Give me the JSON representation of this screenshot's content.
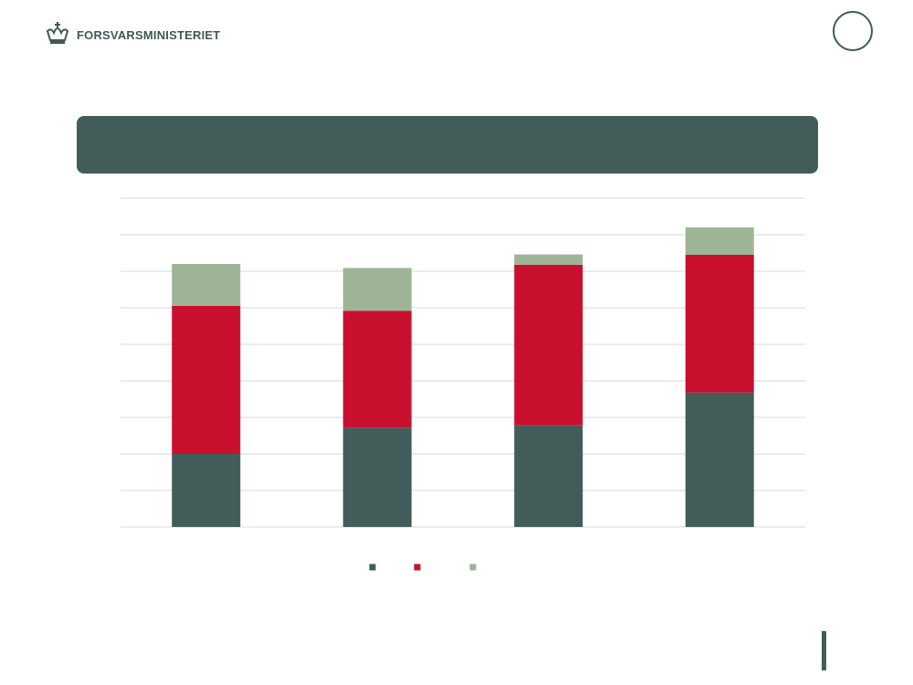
{
  "header": {
    "logo_text": "FORSVARSMINISTERIET"
  },
  "colors": {
    "primary": "#425d59",
    "red": "#c8102e",
    "sage": "#9db497",
    "grid": "#d9d9d9"
  },
  "chart_data": {
    "type": "bar",
    "stacked": true,
    "categories": [
      "",
      "",
      "",
      ""
    ],
    "series": [
      {
        "values": [
          2.0,
          2.72,
          2.78,
          3.68
        ],
        "color": "#425d59"
      },
      {
        "values": [
          4.05,
          3.2,
          4.4,
          3.77
        ],
        "color": "#c8102e"
      },
      {
        "values": [
          1.15,
          1.17,
          0.28,
          0.75
        ],
        "color": "#9db497"
      }
    ],
    "ylim": [
      0,
      9
    ],
    "gridlines": 9,
    "legend": "bottom-center"
  }
}
